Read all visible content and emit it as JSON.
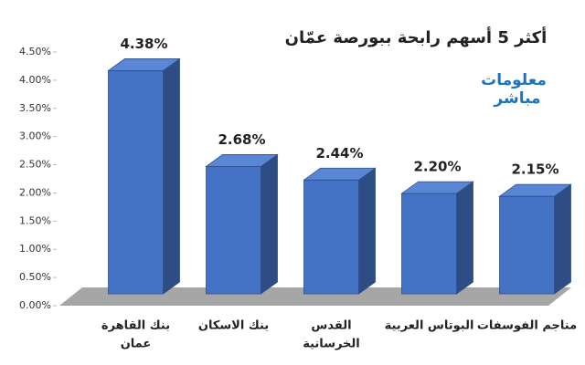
{
  "chart_data": {
    "type": "bar3d",
    "title": "أكثر 5 أسهم رابحة ببورصة عمّان",
    "logo": [
      "معلومات",
      "مباشر"
    ],
    "categories": [
      [
        "بنك القاهرة",
        "عمان"
      ],
      [
        "بنك الاسكان"
      ],
      [
        "القدس",
        "الخرسانية"
      ],
      [
        "البوتاس العربية"
      ],
      [
        "مناجم الفوسفات"
      ]
    ],
    "values": [
      4.38,
      2.68,
      2.44,
      2.2,
      2.15
    ],
    "value_labels": [
      "4.38%",
      "2.68%",
      "2.44%",
      "2.20%",
      "2.15%"
    ],
    "color": "#4472c4",
    "ylim": [
      0,
      4.5
    ],
    "yticks": [
      {
        "value": 0,
        "label": "0.00%"
      },
      {
        "value": 0.5,
        "label": "0.50%"
      },
      {
        "value": 1,
        "label": "1.00%"
      },
      {
        "value": 1.5,
        "label": "1.50%"
      },
      {
        "value": 2,
        "label": "2.00%"
      },
      {
        "value": 2.5,
        "label": "2.50%"
      },
      {
        "value": 3,
        "label": "3.00%"
      },
      {
        "value": 3.5,
        "label": "3.50%"
      },
      {
        "value": 4,
        "label": "4.00%"
      },
      {
        "value": 4.5,
        "label": "4.50%"
      }
    ]
  }
}
